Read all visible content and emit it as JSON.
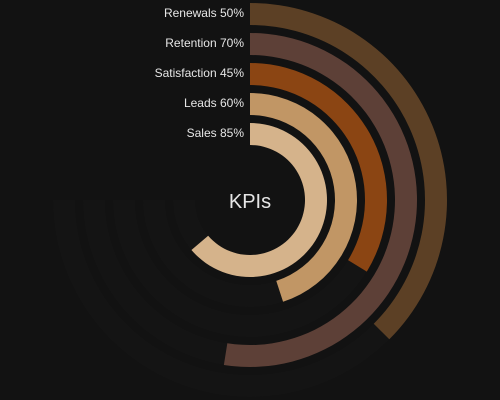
{
  "chart_data": {
    "type": "radial-bar",
    "center_label": "KPIs",
    "max": 100,
    "series": [
      {
        "name": "Sales",
        "value": 85,
        "label": "Sales 85%",
        "color": "#d5b38b"
      },
      {
        "name": "Leads",
        "value": 60,
        "label": "Leads 60%",
        "color": "#c19665"
      },
      {
        "name": "Satisfaction",
        "value": 45,
        "label": "Satisfaction 45%",
        "color": "#8b4513"
      },
      {
        "name": "Retention",
        "value": 70,
        "label": "Retention 70%",
        "color": "#5d4037"
      },
      {
        "name": "Renewals",
        "value": 50,
        "label": "Renewals 50%",
        "color": "#5c4025"
      }
    ],
    "track_color": "#141414",
    "background": "#121212"
  }
}
